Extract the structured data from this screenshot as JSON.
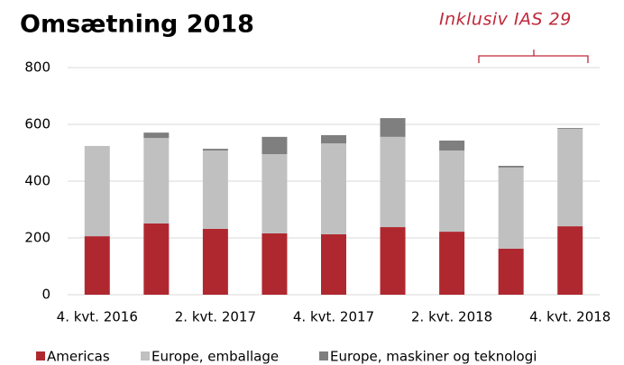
{
  "chart_data": {
    "type": "stacked_bar",
    "title": "Omsætning 2018",
    "annotation": "Inklusiv IAS 29",
    "categories": [
      "4. kvt. 2016",
      null,
      "2. kvt. 2017",
      null,
      "4. kvt. 2017",
      null,
      "2. kvt. 2018",
      null,
      "4. kvt. 2018"
    ],
    "series": [
      {
        "name": "Americas",
        "color": "#b0282f",
        "values": [
          206,
          251,
          232,
          216,
          213,
          238,
          222,
          162,
          241
        ]
      },
      {
        "name": "Europe, emballage",
        "color": "#c0c0c0",
        "values": [
          318,
          301,
          276,
          279,
          320,
          318,
          286,
          286,
          343
        ]
      },
      {
        "name": "Europe, maskiner og teknologi",
        "color": "#7f7f7f",
        "values": [
          0,
          19,
          6,
          61,
          29,
          66,
          35,
          6,
          3
        ]
      }
    ],
    "ylim": [
      0,
      800
    ],
    "yticks": [
      0,
      200,
      400,
      600,
      800
    ],
    "grid": true,
    "legend": "bottom"
  }
}
